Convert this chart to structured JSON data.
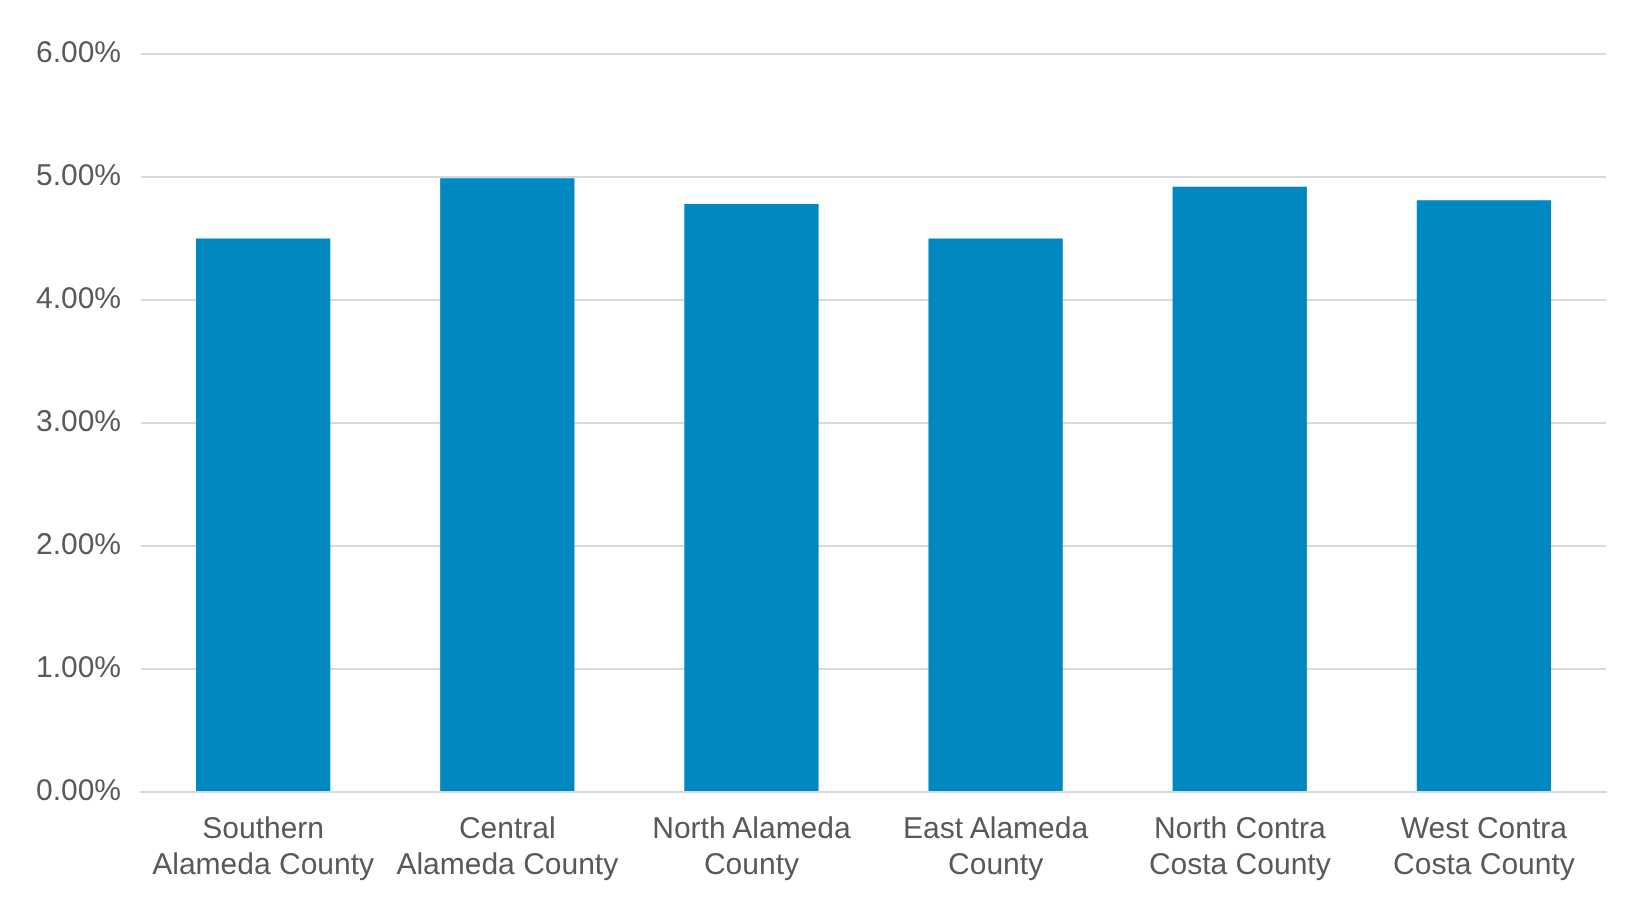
{
  "chart_data": {
    "type": "bar",
    "categories": [
      "Southern Alameda County",
      "Central Alameda County",
      "North Alameda County",
      "East Alameda County",
      "North Contra Costa County",
      "West Contra Costa County"
    ],
    "values": [
      4.5,
      4.99,
      4.78,
      4.5,
      4.92,
      4.81
    ],
    "color": "#0088c0",
    "ylim": [
      0,
      6
    ],
    "yticks": [
      {
        "value": 0,
        "label": "0.00%"
      },
      {
        "value": 1,
        "label": "1.00%"
      },
      {
        "value": 2,
        "label": "2.00%"
      },
      {
        "value": 3,
        "label": "3.00%"
      },
      {
        "value": 4,
        "label": "4.00%"
      },
      {
        "value": 5,
        "label": "5.00%"
      },
      {
        "value": 6,
        "label": "6.00%"
      }
    ],
    "grid": "y"
  }
}
